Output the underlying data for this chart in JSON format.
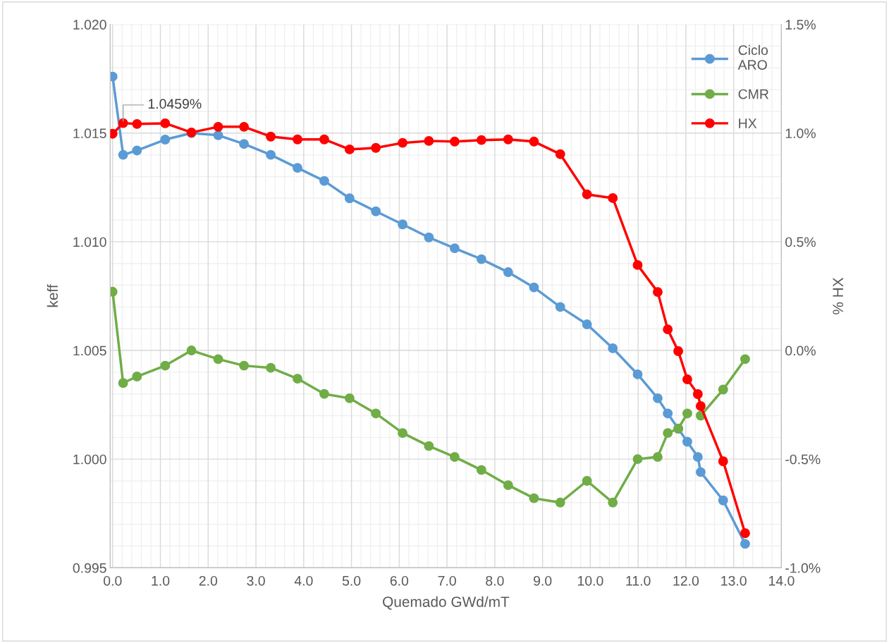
{
  "chart_data": {
    "type": "line",
    "xlabel": "Quemado GWd/mT",
    "ylabel": "keff",
    "y2label": "% HX",
    "x": [
      0,
      0.22,
      0.51,
      1.1,
      1.65,
      2.21,
      2.75,
      3.31,
      3.87,
      4.43,
      4.96,
      5.51,
      6.07,
      6.62,
      7.16,
      7.72,
      8.28,
      8.82,
      9.37,
      9.93,
      10.47,
      10.99,
      11.41,
      11.62,
      11.84,
      12.03,
      12.25,
      12.31,
      12.78,
      13.24
    ],
    "series": [
      {
        "name": "Ciclo\nARO",
        "color": "#5b9bd5",
        "values": [
          1.0176,
          1.014,
          1.0142,
          1.0147,
          1.015,
          1.0149,
          1.0145,
          1.014,
          1.0134,
          1.0128,
          1.012,
          1.0114,
          1.0108,
          1.0102,
          1.0097,
          1.0092,
          1.0086,
          1.0079,
          1.007,
          1.0062,
          1.0051,
          1.0039,
          1.0028,
          1.0021,
          1.0014,
          1.0008,
          1.0001,
          0.9994,
          0.9981,
          0.9961
        ]
      },
      {
        "name": "CMR",
        "color": "#70ad47",
        "values": [
          1.0077,
          1.0035,
          1.0038,
          1.0043,
          1.005,
          1.0046,
          1.0043,
          1.0042,
          1.0037,
          1.003,
          1.0028,
          1.0021,
          1.0012,
          1.0006,
          1.0001,
          0.9995,
          0.9988,
          0.9982,
          0.998,
          0.999,
          0.998,
          1.0,
          1.0001,
          1.0012,
          1.0014,
          1.0021,
          null,
          1.002,
          1.0032,
          1.0046
        ]
      },
      {
        "name": "HX",
        "color": "#ff0000",
        "axis": "y2",
        "values": [
          0.997,
          1.0459,
          1.042,
          1.045,
          1.003,
          1.029,
          1.029,
          0.984,
          0.971,
          0.971,
          0.925,
          0.932,
          0.955,
          0.964,
          0.961,
          0.968,
          0.971,
          0.961,
          0.903,
          0.718,
          0.701,
          0.393,
          0.269,
          0.097,
          -0.003,
          -0.133,
          -0.201,
          -0.256,
          -0.51,
          -0.841
        ],
        "value_labels": [
          null,
          "1.0459%",
          null,
          null,
          null,
          null,
          null,
          null,
          null,
          null,
          null,
          null,
          null,
          null,
          null,
          null,
          null,
          null,
          null,
          null,
          null,
          null,
          null,
          null,
          null,
          null,
          null,
          null,
          null,
          null
        ]
      }
    ],
    "xlim": [
      -0.05,
      14.0
    ],
    "xticks": [
      {
        "value": 0,
        "label": "0.0"
      },
      {
        "value": 1,
        "label": "1.0"
      },
      {
        "value": 2,
        "label": "2.0"
      },
      {
        "value": 3,
        "label": "3.0"
      },
      {
        "value": 4,
        "label": "4.0"
      },
      {
        "value": 5,
        "label": "5.0"
      },
      {
        "value": 6,
        "label": "6.0"
      },
      {
        "value": 7,
        "label": "7.0"
      },
      {
        "value": 8,
        "label": "8.0"
      },
      {
        "value": 9,
        "label": "9.0"
      },
      {
        "value": 10,
        "label": "10.0"
      },
      {
        "value": 11,
        "label": "11.0"
      },
      {
        "value": 12,
        "label": "12.0"
      },
      {
        "value": 13,
        "label": "13.0"
      },
      {
        "value": 14,
        "label": "14.0"
      }
    ],
    "ylim": [
      0.995,
      1.02
    ],
    "yticks": [
      {
        "value": 0.995,
        "label": "0.995"
      },
      {
        "value": 1.0,
        "label": "1.000"
      },
      {
        "value": 1.005,
        "label": "1.005"
      },
      {
        "value": 1.01,
        "label": "1.010"
      },
      {
        "value": 1.015,
        "label": "1.015"
      },
      {
        "value": 1.02,
        "label": "1.020"
      }
    ],
    "y2lim": [
      -1.0,
      1.5
    ],
    "y2ticks": [
      {
        "value": -1.0,
        "label": "-1.0%"
      },
      {
        "value": -0.5,
        "label": "-0.5%"
      },
      {
        "value": 0.0,
        "label": "0.0%"
      },
      {
        "value": 0.5,
        "label": "0.5%"
      },
      {
        "value": 1.0,
        "label": "1.0%"
      },
      {
        "value": 1.5,
        "label": "1.5%"
      }
    ],
    "grid": true,
    "legend": "top right",
    "marker": "circle",
    "line_style": "solid"
  }
}
